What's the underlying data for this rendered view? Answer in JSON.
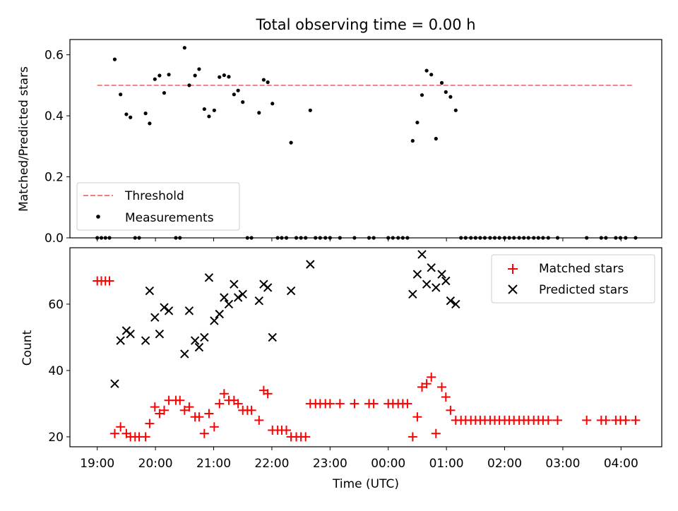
{
  "title": "Total observing time = 0.00 h",
  "chart_data": [
    {
      "type": "scatter",
      "ylabel": "Matched/Predicted stars",
      "xlim": [
        18.53,
        28.7
      ],
      "ylim": [
        0,
        0.65
      ],
      "yticks": [
        0.0,
        0.2,
        0.4,
        0.6
      ],
      "ytick_labels": [
        "0.0",
        "0.2",
        "0.4",
        "0.6"
      ],
      "legend_position": "lower-left",
      "threshold": {
        "name": "Threshold",
        "value": 0.5,
        "x_start": 19.0,
        "x_end": 28.2,
        "color": "#f08080"
      },
      "series": [
        {
          "name": "Measurements",
          "color": "#000000",
          "points": [
            [
              19.0,
              0
            ],
            [
              19.07,
              0
            ],
            [
              19.14,
              0
            ],
            [
              19.21,
              0
            ],
            [
              19.3,
              0.585
            ],
            [
              19.4,
              0.47
            ],
            [
              19.5,
              0.405
            ],
            [
              19.57,
              0.395
            ],
            [
              19.65,
              0
            ],
            [
              19.72,
              0
            ],
            [
              19.83,
              0.408
            ],
            [
              19.9,
              0.375
            ],
            [
              19.99,
              0.52
            ],
            [
              20.07,
              0.532
            ],
            [
              20.15,
              0.475
            ],
            [
              20.23,
              0.535
            ],
            [
              20.35,
              0
            ],
            [
              20.42,
              0
            ],
            [
              20.5,
              0.623
            ],
            [
              20.58,
              0.5
            ],
            [
              20.68,
              0.532
            ],
            [
              20.75,
              0.553
            ],
            [
              20.84,
              0.422
            ],
            [
              20.92,
              0.398
            ],
            [
              21.01,
              0.418
            ],
            [
              21.1,
              0.527
            ],
            [
              21.18,
              0.533
            ],
            [
              21.26,
              0.528
            ],
            [
              21.35,
              0.47
            ],
            [
              21.42,
              0.483
            ],
            [
              21.5,
              0.445
            ],
            [
              21.58,
              0
            ],
            [
              21.65,
              0
            ],
            [
              21.78,
              0.41
            ],
            [
              21.86,
              0.518
            ],
            [
              21.93,
              0.51
            ],
            [
              22.01,
              0.44
            ],
            [
              22.1,
              0
            ],
            [
              22.17,
              0
            ],
            [
              22.25,
              0
            ],
            [
              22.33,
              0.312
            ],
            [
              22.42,
              0
            ],
            [
              22.5,
              0
            ],
            [
              22.58,
              0
            ],
            [
              22.66,
              0.418
            ],
            [
              22.75,
              0
            ],
            [
              22.83,
              0
            ],
            [
              22.92,
              0
            ],
            [
              23.0,
              0
            ],
            [
              23.17,
              0
            ],
            [
              23.42,
              0
            ],
            [
              23.67,
              0
            ],
            [
              23.75,
              0
            ],
            [
              24.0,
              0
            ],
            [
              24.08,
              0
            ],
            [
              24.17,
              0
            ],
            [
              24.25,
              0
            ],
            [
              24.33,
              0
            ],
            [
              24.42,
              0.318
            ],
            [
              24.5,
              0.378
            ],
            [
              24.58,
              0.468
            ],
            [
              24.66,
              0.548
            ],
            [
              24.74,
              0.535
            ],
            [
              24.82,
              0.325
            ],
            [
              24.92,
              0.508
            ],
            [
              24.99,
              0.478
            ],
            [
              25.07,
              0.462
            ],
            [
              25.16,
              0.418
            ],
            [
              25.25,
              0
            ],
            [
              25.33,
              0
            ],
            [
              25.42,
              0
            ],
            [
              25.5,
              0
            ],
            [
              25.58,
              0
            ],
            [
              25.66,
              0
            ],
            [
              25.75,
              0
            ],
            [
              25.83,
              0
            ],
            [
              25.91,
              0
            ],
            [
              26.0,
              0
            ],
            [
              26.08,
              0
            ],
            [
              26.16,
              0
            ],
            [
              26.25,
              0
            ],
            [
              26.33,
              0
            ],
            [
              26.41,
              0
            ],
            [
              26.5,
              0
            ],
            [
              26.58,
              0
            ],
            [
              26.66,
              0
            ],
            [
              26.75,
              0
            ],
            [
              26.91,
              0
            ],
            [
              27.41,
              0
            ],
            [
              27.66,
              0
            ],
            [
              27.74,
              0
            ],
            [
              27.91,
              0
            ],
            [
              27.99,
              0
            ],
            [
              28.08,
              0
            ],
            [
              28.25,
              0
            ]
          ]
        }
      ]
    },
    {
      "type": "scatter",
      "xlabel": "Time (UTC)",
      "ylabel": "Count",
      "xlim": [
        18.53,
        28.7
      ],
      "ylim": [
        17,
        77
      ],
      "yticks": [
        20,
        40,
        60
      ],
      "ytick_labels": [
        "20",
        "40",
        "60"
      ],
      "xticks": [
        19,
        20,
        21,
        22,
        23,
        24,
        25,
        26,
        27,
        28
      ],
      "xtick_labels": [
        "19:00",
        "20:00",
        "21:00",
        "22:00",
        "23:00",
        "00:00",
        "01:00",
        "02:00",
        "03:00",
        "04:00"
      ],
      "legend_position": "upper-right",
      "series": [
        {
          "name": "Matched stars",
          "marker": "plus",
          "color": "#ff0000",
          "points": [
            [
              19.0,
              67
            ],
            [
              19.07,
              67
            ],
            [
              19.14,
              67
            ],
            [
              19.21,
              67
            ],
            [
              19.3,
              21
            ],
            [
              19.4,
              23
            ],
            [
              19.5,
              21
            ],
            [
              19.57,
              20
            ],
            [
              19.65,
              20
            ],
            [
              19.72,
              20
            ],
            [
              19.83,
              20
            ],
            [
              19.9,
              24
            ],
            [
              19.99,
              29
            ],
            [
              20.07,
              27
            ],
            [
              20.15,
              28
            ],
            [
              20.23,
              31
            ],
            [
              20.35,
              31
            ],
            [
              20.42,
              31
            ],
            [
              20.5,
              28
            ],
            [
              20.58,
              29
            ],
            [
              20.68,
              26
            ],
            [
              20.75,
              26
            ],
            [
              20.84,
              21
            ],
            [
              20.92,
              27
            ],
            [
              21.01,
              23
            ],
            [
              21.1,
              30
            ],
            [
              21.18,
              33
            ],
            [
              21.26,
              31
            ],
            [
              21.35,
              31
            ],
            [
              21.42,
              30
            ],
            [
              21.5,
              28
            ],
            [
              21.58,
              28
            ],
            [
              21.65,
              28
            ],
            [
              21.78,
              25
            ],
            [
              21.86,
              34
            ],
            [
              21.93,
              33
            ],
            [
              22.01,
              22
            ],
            [
              22.1,
              22
            ],
            [
              22.17,
              22
            ],
            [
              22.25,
              22
            ],
            [
              22.33,
              20
            ],
            [
              22.42,
              20
            ],
            [
              22.5,
              20
            ],
            [
              22.58,
              20
            ],
            [
              22.66,
              30
            ],
            [
              22.75,
              30
            ],
            [
              22.83,
              30
            ],
            [
              22.92,
              30
            ],
            [
              23.0,
              30
            ],
            [
              23.17,
              30
            ],
            [
              23.42,
              30
            ],
            [
              23.67,
              30
            ],
            [
              23.75,
              30
            ],
            [
              24.0,
              30
            ],
            [
              24.08,
              30
            ],
            [
              24.17,
              30
            ],
            [
              24.25,
              30
            ],
            [
              24.33,
              30
            ],
            [
              24.42,
              20
            ],
            [
              24.5,
              26
            ],
            [
              24.58,
              35
            ],
            [
              24.66,
              36
            ],
            [
              24.74,
              38
            ],
            [
              24.82,
              21
            ],
            [
              24.92,
              35
            ],
            [
              24.99,
              32
            ],
            [
              25.07,
              28
            ],
            [
              25.16,
              25
            ],
            [
              25.25,
              25
            ],
            [
              25.33,
              25
            ],
            [
              25.42,
              25
            ],
            [
              25.5,
              25
            ],
            [
              25.58,
              25
            ],
            [
              25.66,
              25
            ],
            [
              25.75,
              25
            ],
            [
              25.83,
              25
            ],
            [
              25.91,
              25
            ],
            [
              26.0,
              25
            ],
            [
              26.08,
              25
            ],
            [
              26.16,
              25
            ],
            [
              26.25,
              25
            ],
            [
              26.33,
              25
            ],
            [
              26.41,
              25
            ],
            [
              26.5,
              25
            ],
            [
              26.58,
              25
            ],
            [
              26.66,
              25
            ],
            [
              26.75,
              25
            ],
            [
              26.91,
              25
            ],
            [
              27.41,
              25
            ],
            [
              27.66,
              25
            ],
            [
              27.74,
              25
            ],
            [
              27.91,
              25
            ],
            [
              27.99,
              25
            ],
            [
              28.08,
              25
            ],
            [
              28.25,
              25
            ]
          ]
        },
        {
          "name": "Predicted stars",
          "marker": "x",
          "color": "#000000",
          "points": [
            [
              19.3,
              36
            ],
            [
              19.4,
              49
            ],
            [
              19.5,
              52
            ],
            [
              19.57,
              51
            ],
            [
              19.83,
              49
            ],
            [
              19.9,
              64
            ],
            [
              19.99,
              56
            ],
            [
              20.07,
              51
            ],
            [
              20.15,
              59
            ],
            [
              20.23,
              58
            ],
            [
              20.5,
              45
            ],
            [
              20.58,
              58
            ],
            [
              20.68,
              49
            ],
            [
              20.75,
              47
            ],
            [
              20.84,
              50
            ],
            [
              20.92,
              68
            ],
            [
              21.01,
              55
            ],
            [
              21.1,
              57
            ],
            [
              21.18,
              62
            ],
            [
              21.26,
              60
            ],
            [
              21.35,
              66
            ],
            [
              21.42,
              62
            ],
            [
              21.5,
              63
            ],
            [
              21.78,
              61
            ],
            [
              21.86,
              66
            ],
            [
              21.93,
              65
            ],
            [
              22.01,
              50
            ],
            [
              22.33,
              64
            ],
            [
              22.66,
              72
            ],
            [
              24.42,
              63
            ],
            [
              24.5,
              69
            ],
            [
              24.58,
              75
            ],
            [
              24.66,
              66
            ],
            [
              24.74,
              71
            ],
            [
              24.82,
              65
            ],
            [
              24.92,
              69
            ],
            [
              24.99,
              67
            ],
            [
              25.07,
              61
            ],
            [
              25.16,
              60
            ]
          ]
        }
      ]
    }
  ]
}
